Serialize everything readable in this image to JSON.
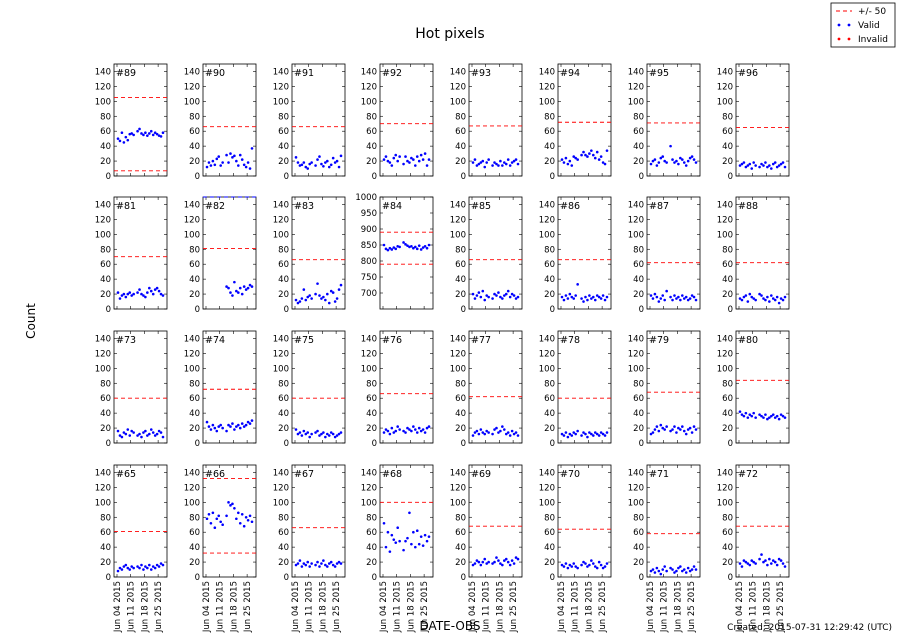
{
  "title": "Hot pixels",
  "ylabel": "Count",
  "xlabel": "DATE-OBS",
  "created": "Created: 2015-07-31 12:29:42 (UTC)",
  "legend": {
    "entries": [
      {
        "label": "+/- 50",
        "style": "dashed",
        "color": "#ff0000"
      },
      {
        "label": "Valid",
        "style": "dots",
        "color": "#0000ff"
      },
      {
        "label": "Invalid",
        "style": "dots",
        "color": "#ff0000"
      }
    ]
  },
  "x_tick_labels": [
    "Jun 04 2015",
    "Jun 11 2015",
    "Jun 18 2015",
    "Jun 25 2015"
  ],
  "colors": {
    "valid": "#0000ff",
    "limit": "#ff0000",
    "axis": "#000000"
  },
  "chart_data": [
    {
      "type": "scatter",
      "title": "#89",
      "ylim": [
        0,
        150
      ],
      "yticks": [
        0,
        20,
        40,
        60,
        80,
        100,
        120,
        140
      ],
      "limits": [
        105,
        7
      ],
      "values": [
        50,
        47,
        58,
        45,
        52,
        48,
        56,
        57,
        55,
        null,
        60,
        63,
        57,
        55,
        58,
        54,
        57,
        60,
        55,
        58,
        56,
        54,
        53,
        58
      ]
    },
    {
      "type": "scatter",
      "title": "#90",
      "ylim": [
        0,
        150
      ],
      "yticks": [
        0,
        20,
        40,
        60,
        80,
        100,
        120,
        140
      ],
      "limits": [
        66
      ],
      "values": [
        12,
        18,
        14,
        20,
        15,
        23,
        26,
        14,
        18,
        null,
        28,
        18,
        30,
        25,
        27,
        20,
        14,
        28,
        22,
        15,
        12,
        18,
        10,
        37
      ]
    },
    {
      "type": "scatter",
      "title": "#91",
      "ylim": [
        0,
        150
      ],
      "yticks": [
        0,
        20,
        40,
        60,
        80,
        100,
        120,
        140
      ],
      "limits": [
        66
      ],
      "values": [
        25,
        18,
        14,
        15,
        18,
        12,
        10,
        16,
        18,
        null,
        14,
        22,
        26,
        16,
        13,
        18,
        20,
        12,
        15,
        24,
        18,
        20,
        12,
        27
      ]
    },
    {
      "type": "scatter",
      "title": "#92",
      "ylim": [
        0,
        150
      ],
      "yticks": [
        0,
        20,
        40,
        60,
        80,
        100,
        120,
        140
      ],
      "limits": [
        70
      ],
      "values": [
        22,
        26,
        20,
        18,
        14,
        24,
        28,
        20,
        26,
        null,
        16,
        26,
        20,
        18,
        24,
        22,
        14,
        26,
        20,
        28,
        22,
        30,
        14,
        22
      ]
    },
    {
      "type": "scatter",
      "title": "#93",
      "ylim": [
        0,
        150
      ],
      "yticks": [
        0,
        20,
        40,
        60,
        80,
        100,
        120,
        140
      ],
      "limits": [
        67
      ],
      "values": [
        18,
        22,
        14,
        16,
        18,
        20,
        12,
        18,
        22,
        null,
        14,
        18,
        16,
        14,
        20,
        14,
        18,
        16,
        22,
        14,
        18,
        20,
        22,
        16
      ]
    },
    {
      "type": "scatter",
      "title": "#94",
      "ylim": [
        0,
        150
      ],
      "yticks": [
        0,
        20,
        40,
        60,
        80,
        100,
        120,
        140
      ],
      "limits": [
        72
      ],
      "values": [
        22,
        18,
        24,
        16,
        20,
        14,
        26,
        24,
        22,
        null,
        28,
        32,
        28,
        26,
        30,
        34,
        28,
        24,
        32,
        22,
        26,
        18,
        16,
        34
      ]
    },
    {
      "type": "scatter",
      "title": "#95",
      "ylim": [
        0,
        150
      ],
      "yticks": [
        0,
        20,
        40,
        60,
        80,
        100,
        120,
        140
      ],
      "limits": [
        71
      ],
      "values": [
        16,
        20,
        22,
        14,
        18,
        24,
        26,
        20,
        18,
        null,
        40,
        22,
        18,
        20,
        16,
        24,
        22,
        18,
        14,
        20,
        24,
        26,
        22,
        18
      ]
    },
    {
      "type": "scatter",
      "title": "#96",
      "ylim": [
        0,
        150
      ],
      "yticks": [
        0,
        20,
        40,
        60,
        80,
        100,
        120,
        140
      ],
      "limits": [
        65
      ],
      "values": [
        14,
        16,
        18,
        12,
        14,
        16,
        10,
        18,
        14,
        null,
        12,
        16,
        14,
        18,
        12,
        14,
        10,
        16,
        18,
        12,
        14,
        16,
        18,
        12
      ]
    },
    {
      "type": "scatter",
      "title": "#81",
      "ylim": [
        0,
        150
      ],
      "yticks": [
        0,
        20,
        40,
        60,
        80,
        100,
        120,
        140
      ],
      "limits": [
        70
      ],
      "values": [
        22,
        14,
        18,
        20,
        16,
        20,
        22,
        18,
        20,
        null,
        22,
        26,
        20,
        18,
        16,
        22,
        28,
        24,
        20,
        26,
        28,
        24,
        20,
        18
      ]
    },
    {
      "type": "scatter",
      "title": "#82",
      "ylim": [
        0,
        150
      ],
      "yticks": [
        0,
        20,
        40,
        60,
        80,
        100,
        120,
        140
      ],
      "limits": [
        81,
        150
      ],
      "values": [
        null,
        null,
        null,
        null,
        null,
        null,
        null,
        null,
        null,
        null,
        30,
        28,
        22,
        18,
        36,
        24,
        22,
        28,
        20,
        30,
        26,
        28,
        32,
        30
      ]
    },
    {
      "type": "scatter",
      "title": "#83",
      "ylim": [
        0,
        150
      ],
      "yticks": [
        0,
        20,
        40,
        60,
        80,
        100,
        120,
        140
      ],
      "limits": [
        66
      ],
      "values": [
        12,
        8,
        10,
        14,
        26,
        12,
        16,
        18,
        14,
        null,
        20,
        34,
        18,
        14,
        16,
        12,
        20,
        8,
        24,
        22,
        10,
        14,
        26,
        32
      ]
    },
    {
      "type": "scatter",
      "title": "#84",
      "ylim": [
        650,
        1000
      ],
      "yticks": [
        700,
        750,
        800,
        850,
        900,
        950,
        1000
      ],
      "limits": [
        890,
        790
      ],
      "values": [
        850,
        838,
        834,
        840,
        836,
        842,
        838,
        846,
        844,
        null,
        858,
        852,
        848,
        844,
        846,
        840,
        844,
        838,
        848,
        836,
        842,
        846,
        840,
        850
      ]
    },
    {
      "type": "scatter",
      "title": "#85",
      "ylim": [
        0,
        150
      ],
      "yticks": [
        0,
        20,
        40,
        60,
        80,
        100,
        120,
        140
      ],
      "limits": [
        66
      ],
      "values": [
        20,
        14,
        18,
        22,
        16,
        24,
        12,
        18,
        16,
        null,
        14,
        20,
        18,
        22,
        16,
        14,
        18,
        20,
        24,
        16,
        20,
        18,
        14,
        16
      ]
    },
    {
      "type": "scatter",
      "title": "#86",
      "ylim": [
        0,
        150
      ],
      "yticks": [
        0,
        20,
        40,
        60,
        80,
        100,
        120,
        140
      ],
      "limits": [
        66
      ],
      "values": [
        16,
        12,
        18,
        14,
        20,
        16,
        14,
        18,
        33,
        null,
        14,
        10,
        16,
        12,
        18,
        14,
        16,
        12,
        18,
        16,
        14,
        18,
        12,
        16
      ]
    },
    {
      "type": "scatter",
      "title": "#87",
      "ylim": [
        0,
        150
      ],
      "yticks": [
        0,
        20,
        40,
        60,
        80,
        100,
        120,
        140
      ],
      "limits": [
        62
      ],
      "values": [
        18,
        14,
        20,
        16,
        10,
        14,
        18,
        12,
        24,
        null,
        16,
        12,
        18,
        14,
        16,
        12,
        18,
        14,
        16,
        12,
        14,
        18,
        16,
        12
      ]
    },
    {
      "type": "scatter",
      "title": "#88",
      "ylim": [
        0,
        150
      ],
      "yticks": [
        0,
        20,
        40,
        60,
        80,
        100,
        120,
        140
      ],
      "limits": [
        62
      ],
      "values": [
        14,
        12,
        16,
        18,
        10,
        20,
        16,
        14,
        12,
        null,
        20,
        18,
        14,
        12,
        16,
        10,
        18,
        14,
        12,
        16,
        8,
        14,
        12,
        16
      ]
    },
    {
      "type": "scatter",
      "title": "#73",
      "ylim": [
        0,
        150
      ],
      "yticks": [
        0,
        20,
        40,
        60,
        80,
        100,
        120,
        140
      ],
      "limits": [
        60
      ],
      "values": [
        16,
        10,
        8,
        14,
        12,
        18,
        10,
        16,
        14,
        null,
        10,
        12,
        8,
        14,
        16,
        10,
        12,
        18,
        14,
        10,
        12,
        16,
        14,
        8
      ]
    },
    {
      "type": "scatter",
      "title": "#74",
      "ylim": [
        0,
        150
      ],
      "yticks": [
        0,
        20,
        40,
        60,
        80,
        100,
        120,
        140
      ],
      "limits": [
        72
      ],
      "values": [
        28,
        22,
        18,
        24,
        20,
        16,
        22,
        24,
        20,
        null,
        16,
        24,
        22,
        26,
        18,
        22,
        24,
        20,
        26,
        22,
        24,
        28,
        26,
        30
      ]
    },
    {
      "type": "scatter",
      "title": "#75",
      "ylim": [
        0,
        150
      ],
      "yticks": [
        0,
        20,
        40,
        60,
        80,
        100,
        120,
        140
      ],
      "limits": [
        60
      ],
      "values": [
        18,
        12,
        14,
        10,
        16,
        12,
        14,
        8,
        12,
        null,
        14,
        16,
        10,
        12,
        14,
        8,
        12,
        10,
        14,
        12,
        8,
        10,
        12,
        14
      ]
    },
    {
      "type": "scatter",
      "title": "#76",
      "ylim": [
        0,
        150
      ],
      "yticks": [
        0,
        20,
        40,
        60,
        80,
        100,
        120,
        140
      ],
      "limits": [
        66
      ],
      "values": [
        14,
        18,
        16,
        12,
        20,
        14,
        16,
        22,
        18,
        null,
        16,
        14,
        20,
        18,
        16,
        22,
        18,
        14,
        20,
        16,
        18,
        14,
        20,
        22
      ]
    },
    {
      "type": "scatter",
      "title": "#77",
      "ylim": [
        0,
        150
      ],
      "yticks": [
        0,
        20,
        40,
        60,
        80,
        100,
        120,
        140
      ],
      "limits": [
        62
      ],
      "values": [
        10,
        14,
        16,
        12,
        18,
        14,
        12,
        16,
        14,
        null,
        12,
        18,
        20,
        14,
        16,
        22,
        18,
        12,
        14,
        10,
        16,
        12,
        14,
        10
      ]
    },
    {
      "type": "scatter",
      "title": "#78",
      "ylim": [
        0,
        150
      ],
      "yticks": [
        0,
        20,
        40,
        60,
        80,
        100,
        120,
        140
      ],
      "limits": [
        60
      ],
      "values": [
        12,
        10,
        14,
        8,
        12,
        10,
        14,
        12,
        16,
        null,
        10,
        14,
        12,
        8,
        14,
        12,
        10,
        14,
        12,
        10,
        14,
        12,
        10,
        14
      ]
    },
    {
      "type": "scatter",
      "title": "#79",
      "ylim": [
        0,
        150
      ],
      "yticks": [
        0,
        20,
        40,
        60,
        80,
        100,
        120,
        140
      ],
      "limits": [
        68
      ],
      "values": [
        12,
        14,
        18,
        22,
        16,
        24,
        20,
        18,
        22,
        null,
        16,
        18,
        22,
        14,
        20,
        18,
        22,
        16,
        12,
        18,
        20,
        14,
        22,
        18
      ]
    },
    {
      "type": "scatter",
      "title": "#80",
      "ylim": [
        0,
        150
      ],
      "yticks": [
        0,
        20,
        40,
        60,
        80,
        100,
        120,
        140
      ],
      "limits": [
        84
      ],
      "values": [
        42,
        38,
        36,
        40,
        34,
        38,
        36,
        40,
        34,
        null,
        38,
        36,
        34,
        38,
        32,
        34,
        36,
        38,
        34,
        36,
        32,
        38,
        36,
        34
      ]
    },
    {
      "type": "scatter",
      "title": "#65",
      "ylim": [
        0,
        150
      ],
      "yticks": [
        0,
        20,
        40,
        60,
        80,
        100,
        120,
        140
      ],
      "limits": [
        61
      ],
      "values": [
        8,
        12,
        10,
        14,
        16,
        12,
        10,
        14,
        12,
        null,
        14,
        12,
        16,
        10,
        14,
        12,
        16,
        10,
        14,
        12,
        16,
        14,
        18,
        16
      ]
    },
    {
      "type": "scatter",
      "title": "#66",
      "ylim": [
        0,
        150
      ],
      "yticks": [
        0,
        20,
        40,
        60,
        80,
        100,
        120,
        140
      ],
      "limits": [
        132,
        32
      ],
      "values": [
        78,
        84,
        72,
        86,
        66,
        78,
        82,
        74,
        70,
        null,
        82,
        100,
        96,
        98,
        92,
        78,
        86,
        72,
        84,
        68,
        80,
        76,
        82,
        74
      ]
    },
    {
      "type": "scatter",
      "title": "#67",
      "ylim": [
        0,
        150
      ],
      "yticks": [
        0,
        20,
        40,
        60,
        80,
        100,
        120,
        140
      ],
      "limits": [
        66
      ],
      "values": [
        16,
        18,
        22,
        14,
        18,
        16,
        20,
        14,
        18,
        null,
        16,
        20,
        14,
        18,
        22,
        16,
        14,
        18,
        20,
        16,
        14,
        18,
        20,
        18
      ]
    },
    {
      "type": "scatter",
      "title": "#68",
      "ylim": [
        0,
        150
      ],
      "yticks": [
        0,
        20,
        40,
        60,
        80,
        100,
        120,
        140
      ],
      "limits": [
        100
      ],
      "values": [
        72,
        40,
        60,
        34,
        56,
        50,
        46,
        66,
        48,
        null,
        36,
        48,
        52,
        86,
        44,
        60,
        40,
        62,
        44,
        54,
        42,
        56,
        48,
        54
      ]
    },
    {
      "type": "scatter",
      "title": "#69",
      "ylim": [
        0,
        150
      ],
      "yticks": [
        0,
        20,
        40,
        60,
        80,
        100,
        120,
        140
      ],
      "limits": [
        68
      ],
      "values": [
        16,
        18,
        22,
        20,
        16,
        20,
        24,
        18,
        20,
        null,
        18,
        20,
        26,
        22,
        18,
        16,
        22,
        24,
        20,
        16,
        22,
        18,
        26,
        24
      ]
    },
    {
      "type": "scatter",
      "title": "#70",
      "ylim": [
        0,
        150
      ],
      "yticks": [
        0,
        20,
        40,
        60,
        80,
        100,
        120,
        140
      ],
      "limits": [
        64
      ],
      "values": [
        16,
        14,
        18,
        12,
        16,
        14,
        18,
        14,
        12,
        null,
        16,
        20,
        18,
        14,
        16,
        22,
        18,
        14,
        12,
        20,
        16,
        12,
        14,
        18
      ]
    },
    {
      "type": "scatter",
      "title": "#71",
      "ylim": [
        0,
        150
      ],
      "yticks": [
        0,
        20,
        40,
        60,
        80,
        100,
        120,
        140
      ],
      "limits": [
        58
      ],
      "values": [
        8,
        10,
        6,
        12,
        8,
        4,
        10,
        14,
        8,
        null,
        12,
        10,
        6,
        8,
        12,
        14,
        8,
        10,
        6,
        12,
        8,
        10,
        14,
        10
      ]
    },
    {
      "type": "scatter",
      "title": "#72",
      "ylim": [
        0,
        150
      ],
      "yticks": [
        0,
        20,
        40,
        60,
        80,
        100,
        120,
        140
      ],
      "limits": [
        68
      ],
      "values": [
        18,
        14,
        22,
        20,
        18,
        16,
        22,
        20,
        18,
        null,
        24,
        30,
        20,
        22,
        16,
        24,
        18,
        22,
        20,
        16,
        24,
        22,
        18,
        14
      ]
    }
  ]
}
